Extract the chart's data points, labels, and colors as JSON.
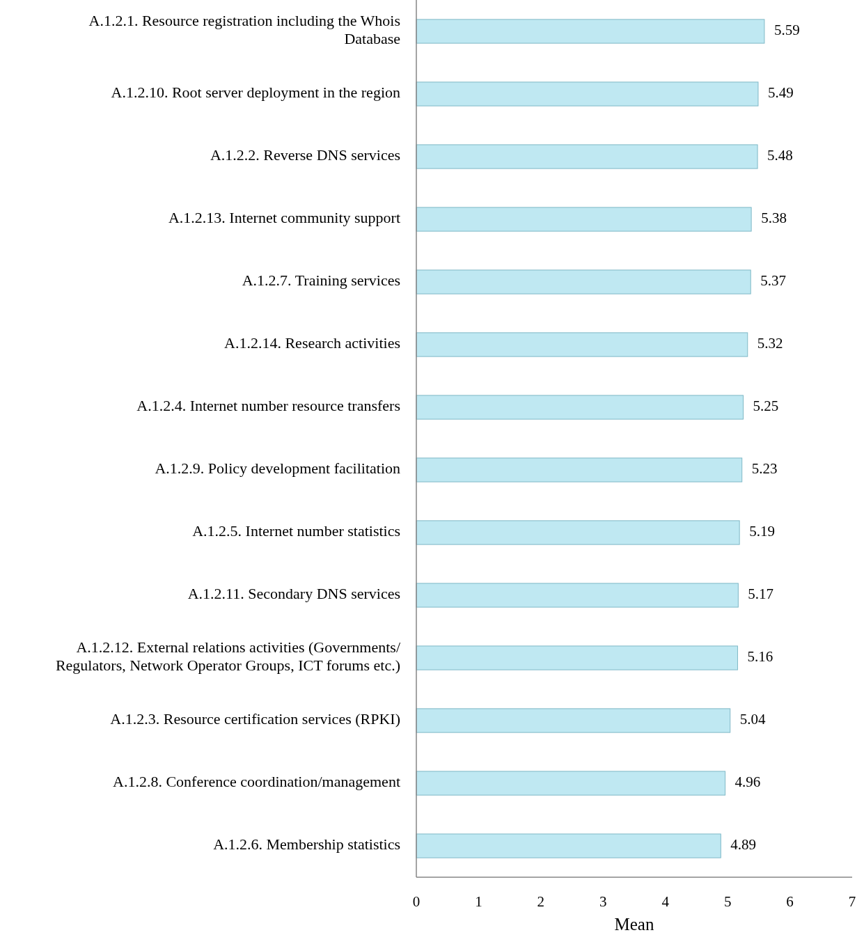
{
  "chart_data": {
    "type": "bar",
    "orientation": "horizontal",
    "xlabel": "Mean",
    "categories": [
      "A.1.2.1. Resource registration including the Whois Database",
      "A.1.2.10. Root server deployment in the region",
      "A.1.2.2. Reverse DNS services",
      "A.1.2.13. Internet community support",
      "A.1.2.7. Training services",
      "A.1.2.14. Research activities",
      "A.1.2.4. Internet number resource transfers",
      "A.1.2.9. Policy development facilitation",
      "A.1.2.5. Internet number statistics",
      "A.1.2.11. Secondary DNS services",
      "A.1.2.12. External relations activities (Governments/ Regulators, Network Operator Groups, ICT forums etc.)",
      "A.1.2.3. Resource certification services (RPKI)",
      "A.1.2.8. Conference coordination/management",
      "A.1.2.6. Membership statistics"
    ],
    "values": [
      5.59,
      5.49,
      5.48,
      5.38,
      5.37,
      5.32,
      5.25,
      5.23,
      5.19,
      5.17,
      5.16,
      5.04,
      4.96,
      4.89
    ],
    "color": "#bfe8f2",
    "xlim": [
      0,
      7
    ],
    "xticks": [
      0,
      1,
      2,
      3,
      4,
      5,
      6,
      7
    ],
    "data_labels": true,
    "grid": false
  }
}
